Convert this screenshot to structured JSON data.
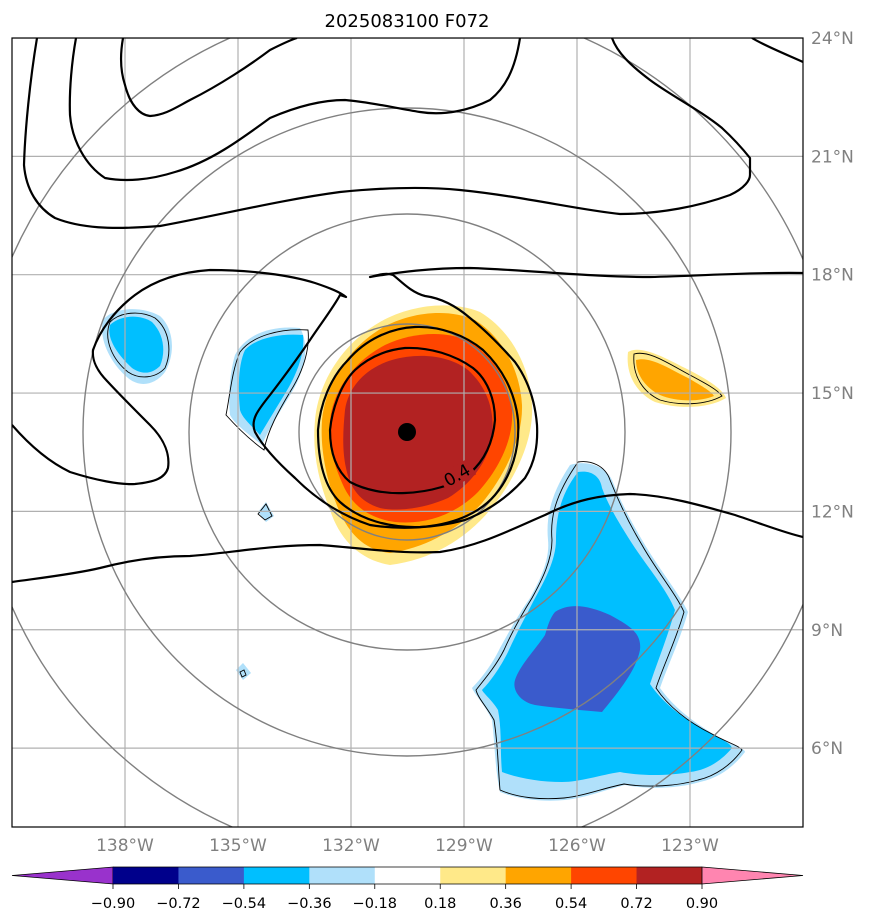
{
  "chart_data": {
    "type": "map",
    "title": "2025083100 F072",
    "lon_range": [
      -141,
      -120
    ],
    "lat_range": [
      4,
      24
    ],
    "lon_ticks": [
      "138°W",
      "135°W",
      "132°W",
      "129°W",
      "126°W",
      "123°W"
    ],
    "lon_tick_values": [
      -138,
      -135,
      -132,
      -129,
      -126,
      -123
    ],
    "lat_ticks": [
      "6°N",
      "9°N",
      "12°N",
      "15°N",
      "18°N",
      "21°N",
      "24°N"
    ],
    "lat_tick_values": [
      6,
      9,
      12,
      15,
      18,
      21,
      24
    ],
    "center": {
      "lon": -130.4,
      "lat": 14.0
    },
    "contour_label": "0.4",
    "grid": true,
    "colorbar": {
      "levels": [
        "−0.90",
        "−0.72",
        "−0.54",
        "−0.36",
        "−0.18",
        "0.18",
        "0.36",
        "0.54",
        "0.72",
        "0.90"
      ],
      "colors": [
        "#9932cc",
        "#00008b",
        "#3a5bcc",
        "#00bfff",
        "#b0e0fa",
        "#ffffff",
        "#ffe989",
        "#ffa500",
        "#ff4500",
        "#b22222",
        "#ff85b0"
      ],
      "extend": "both"
    }
  }
}
